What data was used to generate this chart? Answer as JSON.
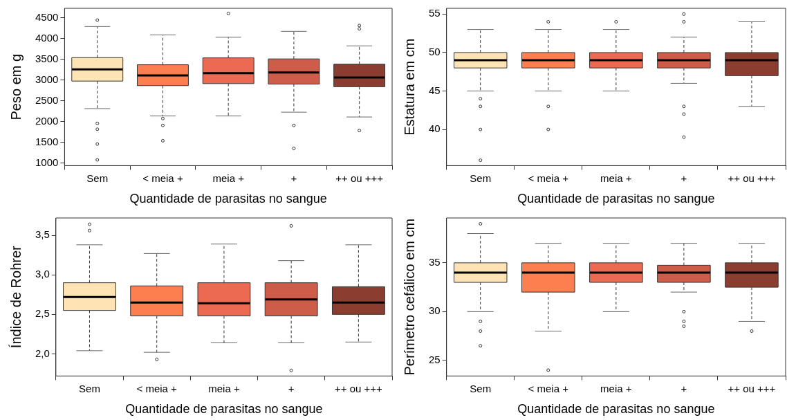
{
  "chart_data": [
    {
      "type": "box",
      "categories": [
        "Sem",
        "< meia +",
        "meia +",
        "+",
        "++ ou +++"
      ],
      "colors": [
        "#fee3b5",
        "#fd7f50",
        "#ec6a52",
        "#cd5c48",
        "#8b3d30"
      ],
      "xlabel": "Quantidade de parasitas no sangue",
      "ylabel": "Peso em g",
      "ylim": [
        940,
        4730
      ],
      "yticks": [
        1000,
        1500,
        2000,
        2500,
        3000,
        3500,
        4000,
        4500
      ],
      "grid": false,
      "legend": false,
      "boxes": [
        {
          "low": 2314,
          "q1": 2977,
          "median": 3260,
          "q3": 3542,
          "high": 4291,
          "outliers": [
            4445,
            1958,
            1817,
            1461,
            1080
          ]
        },
        {
          "low": 2136,
          "q1": 2867,
          "median": 3112,
          "q3": 3370,
          "high": 4089,
          "outliers": [
            2075,
            1909,
            1540
          ]
        },
        {
          "low": 2136,
          "q1": 2916,
          "median": 3168,
          "q3": 3536,
          "high": 4033,
          "outliers": [
            4604
          ]
        },
        {
          "low": 2228,
          "q1": 2904,
          "median": 3186,
          "q3": 3511,
          "high": 4175,
          "outliers": [
            1909,
            1356
          ]
        },
        {
          "low": 2112,
          "q1": 2842,
          "median": 3063,
          "q3": 3383,
          "high": 3825,
          "outliers": [
            4316,
            4236,
            1786
          ]
        }
      ]
    },
    {
      "type": "box",
      "categories": [
        "Sem",
        "< meia +",
        "meia +",
        "+",
        "++ ou +++"
      ],
      "colors": [
        "#fee3b5",
        "#fd7f50",
        "#ec6a52",
        "#cd5c48",
        "#8b3d30"
      ],
      "xlabel": "Quantidade de parasitas no sangue",
      "ylabel": "Estatura em cm",
      "ylim": [
        35.3,
        55.75
      ],
      "yticks": [
        40,
        45,
        50,
        55
      ],
      "grid": false,
      "legend": false,
      "boxes": [
        {
          "low": 45,
          "q1": 48,
          "median": 49,
          "q3": 50,
          "high": 53,
          "outliers": [
            44,
            43,
            40,
            36
          ]
        },
        {
          "low": 45,
          "q1": 48,
          "median": 49,
          "q3": 50,
          "high": 53,
          "outliers": [
            54,
            43,
            40
          ]
        },
        {
          "low": 45,
          "q1": 48,
          "median": 49,
          "q3": 50,
          "high": 53,
          "outliers": [
            54
          ]
        },
        {
          "low": 46,
          "q1": 48,
          "median": 49,
          "q3": 50,
          "high": 52,
          "outliers": [
            55,
            54,
            43,
            42,
            39
          ]
        },
        {
          "low": 43,
          "q1": 47,
          "median": 49,
          "q3": 50,
          "high": 54
        }
      ]
    },
    {
      "type": "box",
      "categories": [
        "Sem",
        "< meia +",
        "meia +",
        "+",
        "++ ou +++"
      ],
      "colors": [
        "#fee3b5",
        "#fd7f50",
        "#ec6a52",
        "#cd5c48",
        "#8b3d30"
      ],
      "xlabel": "Quantidade de parasitas no sangue",
      "ylabel": "Índice de Rohrer",
      "ylim": [
        1.72,
        3.72
      ],
      "yticks": [
        {
          "value": 2,
          "label": "2,0"
        },
        {
          "value": 2.5,
          "label": "2,5"
        },
        {
          "value": 3,
          "label": "3,0"
        },
        {
          "value": 3.5,
          "label": "3,5"
        }
      ],
      "grid": false,
      "legend": false,
      "boxes": [
        {
          "low": 2.04,
          "q1": 2.55,
          "median": 2.72,
          "q3": 2.9,
          "high": 3.38,
          "outliers": [
            3.64,
            3.56
          ]
        },
        {
          "low": 2.02,
          "q1": 2.48,
          "median": 2.65,
          "q3": 2.86,
          "high": 3.27,
          "outliers": [
            1.93
          ]
        },
        {
          "low": 2.14,
          "q1": 2.48,
          "median": 2.64,
          "q3": 2.9,
          "high": 3.39
        },
        {
          "low": 2.14,
          "q1": 2.48,
          "median": 2.69,
          "q3": 2.9,
          "high": 3.18,
          "outliers": [
            3.62,
            1.79
          ]
        },
        {
          "low": 2.15,
          "q1": 2.5,
          "median": 2.65,
          "q3": 2.85,
          "high": 3.38
        }
      ]
    },
    {
      "type": "box",
      "categories": [
        "Sem",
        "< meia +",
        "meia +",
        "+",
        "++ ou +++"
      ],
      "colors": [
        "#fee3b5",
        "#fd7f50",
        "#ec6a52",
        "#cd5c48",
        "#8b3d30"
      ],
      "xlabel": "Quantidade de parasitas no sangue",
      "ylabel": "Perímetro cefálico em cm",
      "ylim": [
        23.4,
        39.6
      ],
      "yticks": [
        25,
        30,
        35
      ],
      "grid": false,
      "legend": false,
      "boxes": [
        {
          "low": 30,
          "q1": 33,
          "median": 34,
          "q3": 35,
          "high": 38,
          "outliers": [
            39,
            29,
            28,
            26.5
          ]
        },
        {
          "low": 28,
          "q1": 32,
          "median": 34,
          "q3": 35,
          "high": 37,
          "outliers": [
            24
          ]
        },
        {
          "low": 30,
          "q1": 33,
          "median": 34,
          "q3": 35,
          "high": 37
        },
        {
          "low": 32,
          "q1": 33,
          "median": 34,
          "q3": 34.75,
          "high": 37,
          "outliers": [
            30,
            29,
            28.5
          ]
        },
        {
          "low": 29,
          "q1": 32.5,
          "median": 34,
          "q3": 35,
          "high": 37,
          "outliers": [
            28
          ]
        }
      ]
    }
  ]
}
